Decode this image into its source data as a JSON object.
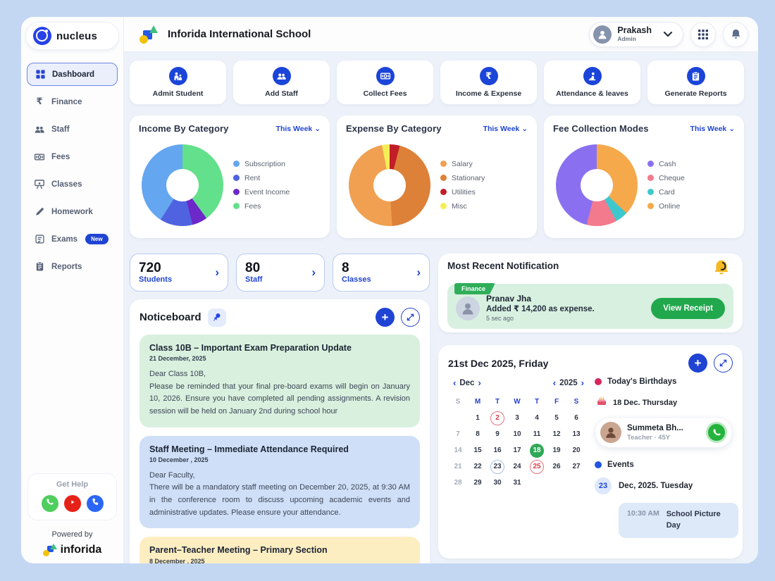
{
  "brand": {
    "name": "nucleus"
  },
  "header": {
    "school_name": "Inforida International School",
    "user": {
      "name": "Prakash",
      "role": "Admin"
    }
  },
  "sidebar": {
    "items": [
      {
        "label": "Dashboard",
        "icon": "dashboard",
        "active": true
      },
      {
        "label": "Finance",
        "icon": "finance",
        "active": false
      },
      {
        "label": "Staff",
        "icon": "staff",
        "active": false
      },
      {
        "label": "Fees",
        "icon": "fees",
        "active": false
      },
      {
        "label": "Classes",
        "icon": "classes",
        "active": false
      },
      {
        "label": "Homework",
        "icon": "homework",
        "active": false
      },
      {
        "label": "Exams",
        "icon": "exams",
        "active": false,
        "badge": "New"
      },
      {
        "label": "Reports",
        "icon": "reports",
        "active": false
      }
    ],
    "get_help": {
      "label": "Get Help",
      "channels": [
        "whatsapp",
        "youtube",
        "phone"
      ]
    },
    "powered_by": "Powered by",
    "powered_brand": "inforida"
  },
  "quick_actions": [
    {
      "label": "Admit Student",
      "icon": "admit-student"
    },
    {
      "label": "Add Staff",
      "icon": "add-staff"
    },
    {
      "label": "Collect Fees",
      "icon": "collect-fees"
    },
    {
      "label": "Income & Expense",
      "icon": "income-expense"
    },
    {
      "label": "Attendance & leaves",
      "icon": "attendance"
    },
    {
      "label": "Generate Reports",
      "icon": "generate-reports"
    }
  ],
  "chart_data": [
    {
      "type": "donut",
      "title": "Income By Category",
      "filter": "This Week",
      "items": [
        {
          "label": "Subscription",
          "color": "#64a6f0",
          "value": 41
        },
        {
          "label": "Rent",
          "color": "#4f63e0",
          "value": 13
        },
        {
          "label": "Event Income",
          "color": "#6d28c9",
          "value": 6
        },
        {
          "label": "Fees",
          "color": "#63e08b",
          "value": 40
        }
      ],
      "draw_order": [
        3,
        2,
        1,
        0
      ]
    },
    {
      "type": "donut",
      "title": "Expense By Category",
      "filter": "This Week",
      "items": [
        {
          "label": "Salary",
          "color": "#f0a050",
          "value": 48
        },
        {
          "label": "Stationary",
          "color": "#dd8038",
          "value": 45
        },
        {
          "label": "Utilities",
          "color": "#c11e28",
          "value": 4
        },
        {
          "label": "Misc",
          "color": "#f5ee55",
          "value": 3
        }
      ],
      "draw_order": [
        2,
        1,
        0,
        3
      ]
    },
    {
      "type": "donut",
      "title": "Fee Collection Modes",
      "filter": "This Week",
      "items": [
        {
          "label": "Cash",
          "color": "#8a70f0",
          "value": 46
        },
        {
          "label": "Cheque",
          "color": "#f3798d",
          "value": 12
        },
        {
          "label": "Card",
          "color": "#3ec8ce",
          "value": 5
        },
        {
          "label": "Online",
          "color": "#f5a94b",
          "value": 37
        }
      ],
      "draw_order": [
        3,
        2,
        1,
        0
      ]
    }
  ],
  "stats": [
    {
      "value": "720",
      "label": "Students"
    },
    {
      "value": "80",
      "label": "Staff"
    },
    {
      "value": "8",
      "label": "Classes"
    }
  ],
  "notification": {
    "title": "Most Recent Notification",
    "badge": "Finance",
    "name": "Pranav Jha",
    "message": "Added ₹ 14,200 as expense.",
    "time": "5 sec ago",
    "button": "View Receipt"
  },
  "noticeboard": {
    "title": "Noticeboard",
    "notices": [
      {
        "title": "Class 10B – Important Exam Preparation Update",
        "date": "21 December, 2025",
        "body": "Dear Class 10B,\nPlease be reminded that your final pre-board exams will begin on January 10, 2026. Ensure you have completed all pending assignments. A revision session will be held on January 2nd during school hour",
        "theme": "green"
      },
      {
        "title": "Staff Meeting – Immediate Attendance Required",
        "date": "10 December , 2025",
        "body": "Dear Faculty,\nThere will be a mandatory staff meeting on December 20, 2025, at 9:30 AM in the conference room to discuss upcoming academic events and administrative updates. Please ensure your attendance.",
        "theme": "blue"
      },
      {
        "title": "Parent–Teacher Meeting – Primary Section",
        "date": "8 December , 2025",
        "body": "",
        "theme": "yellow"
      }
    ]
  },
  "calendar": {
    "title": "21st Dec 2025, Friday",
    "month": "Dec",
    "year": "2025",
    "day_headers": [
      "S",
      "M",
      "T",
      "W",
      "T",
      "F",
      "S"
    ],
    "weeks": [
      [
        "",
        1,
        2,
        3,
        4,
        5,
        6
      ],
      [
        7,
        8,
        9,
        10,
        11,
        12,
        13
      ],
      [
        14,
        15,
        16,
        17,
        18,
        19,
        20
      ],
      [
        21,
        22,
        23,
        24,
        25,
        26,
        27
      ],
      [
        28,
        29,
        30,
        31,
        "",
        "",
        ""
      ]
    ],
    "marks": {
      "2": "red-outline",
      "18": "green-filled",
      "23": "blue-outline",
      "25": "red-outline"
    }
  },
  "birthdays": {
    "title": "Today's Birthdays",
    "date": "18 Dec. Thursday",
    "person": {
      "name": "Summeta Bh...",
      "meta": "Teacher · 45Y"
    }
  },
  "events": {
    "title": "Events",
    "day": "23",
    "date_label": "Dec, 2025. Tuesday",
    "entries": [
      {
        "time": "10:30 AM",
        "name": "School Picture Day"
      }
    ]
  }
}
